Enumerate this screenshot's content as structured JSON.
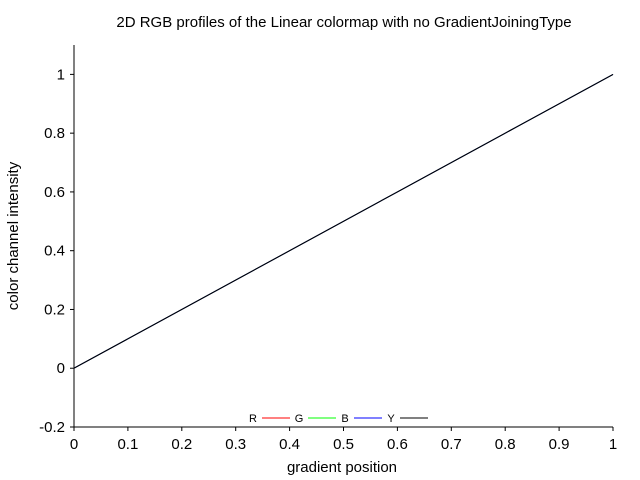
{
  "chart_data": {
    "type": "line",
    "title": "2D RGB profiles of the Linear colormap with no GradientJoiningType",
    "xlabel": "gradient position",
    "ylabel": "color channel intensity",
    "xlim": [
      0,
      1
    ],
    "ylim": [
      -0.2,
      1.1
    ],
    "xticks": [
      0,
      0.1,
      0.2,
      0.3,
      0.4,
      0.5,
      0.6,
      0.7,
      0.8,
      0.9,
      1
    ],
    "xtick_labels": [
      "0",
      "0.1",
      "0.2",
      "0.3",
      "0.4",
      "0.5",
      "0.6",
      "0.7",
      "0.8",
      "0.9",
      "1"
    ],
    "yticks": [
      -0.2,
      0,
      0.2,
      0.4,
      0.6,
      0.8,
      1
    ],
    "ytick_labels": [
      "-0.2",
      "0",
      "0.2",
      "0.4",
      "0.6",
      "0.8",
      "1"
    ],
    "grid": false,
    "legend_position": "bottom-center",
    "x": [
      0,
      0.1,
      0.2,
      0.3,
      0.4,
      0.5,
      0.6,
      0.7,
      0.8,
      0.9,
      1
    ],
    "series": [
      {
        "name": "R",
        "color": "#ff0000",
        "values": [
          0,
          0.1,
          0.2,
          0.3,
          0.4,
          0.5,
          0.6,
          0.7,
          0.8,
          0.9,
          1
        ]
      },
      {
        "name": "G",
        "color": "#00ff00",
        "values": [
          0,
          0.1,
          0.2,
          0.3,
          0.4,
          0.5,
          0.6,
          0.7,
          0.8,
          0.9,
          1
        ]
      },
      {
        "name": "B",
        "color": "#0000ff",
        "values": [
          0,
          0.1,
          0.2,
          0.3,
          0.4,
          0.5,
          0.6,
          0.7,
          0.8,
          0.9,
          1
        ]
      },
      {
        "name": "Y",
        "color": "#000000",
        "values": [
          0,
          0.1,
          0.2,
          0.3,
          0.4,
          0.5,
          0.6,
          0.7,
          0.8,
          0.9,
          1
        ]
      }
    ]
  }
}
